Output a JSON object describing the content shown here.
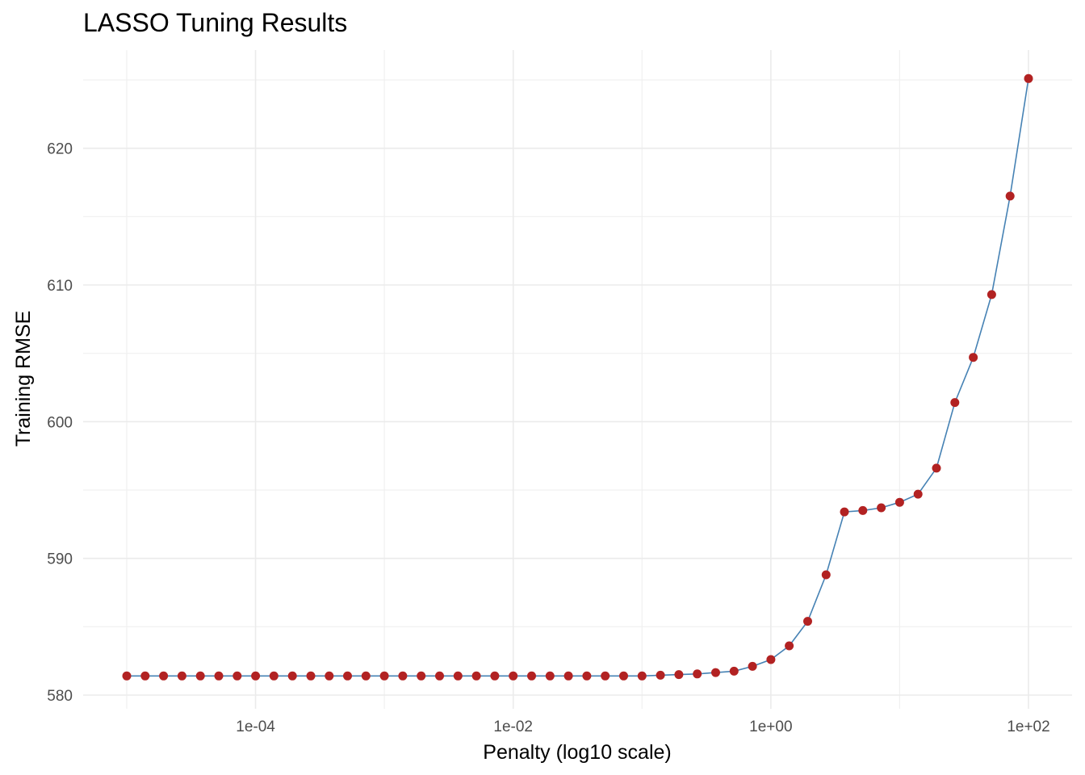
{
  "chart_data": {
    "type": "line",
    "title": "LASSO Tuning Results",
    "xlabel": "Penalty (log10 scale)",
    "ylabel": "Training RMSE",
    "x_scale": "log10",
    "xlim": [
      1e-05,
      100
    ],
    "ylim": [
      580,
      625
    ],
    "x_ticks": [
      {
        "value": 0.0001,
        "label": "1e-04"
      },
      {
        "value": 0.01,
        "label": "1e-02"
      },
      {
        "value": 1,
        "label": "1e+00"
      },
      {
        "value": 100,
        "label": "1e+02"
      }
    ],
    "y_ticks": [
      {
        "value": 580,
        "label": "580"
      },
      {
        "value": 590,
        "label": "590"
      },
      {
        "value": 600,
        "label": "600"
      },
      {
        "value": 610,
        "label": "610"
      },
      {
        "value": 620,
        "label": "620"
      }
    ],
    "grid": true,
    "line_color": "#4682b4",
    "point_color": "#b22222",
    "series": [
      {
        "x": [
          1e-05,
          1.389e-05,
          1.931e-05,
          2.683e-05,
          3.728e-05,
          5.179e-05,
          7.197e-05,
          0.0001,
          0.0001389,
          0.0001931,
          0.0002683,
          0.0003728,
          0.0005179,
          0.0007197,
          0.001,
          0.001389,
          0.001931,
          0.002683,
          0.003728,
          0.005179,
          0.007197,
          0.01,
          0.01389,
          0.01931,
          0.02683,
          0.03728,
          0.05179,
          0.07197,
          0.1,
          0.1389,
          0.1931,
          0.2683,
          0.3728,
          0.5179,
          0.7197,
          1,
          1.389,
          1.931,
          2.683,
          3.728,
          5.179,
          7.197,
          10,
          13.89,
          19.31,
          26.83,
          37.28,
          51.79,
          71.97,
          100
        ],
        "y": [
          581.4,
          581.4,
          581.4,
          581.4,
          581.4,
          581.4,
          581.4,
          581.4,
          581.4,
          581.4,
          581.4,
          581.4,
          581.4,
          581.4,
          581.4,
          581.4,
          581.4,
          581.4,
          581.4,
          581.4,
          581.4,
          581.4,
          581.4,
          581.4,
          581.4,
          581.4,
          581.4,
          581.4,
          581.4,
          581.45,
          581.5,
          581.55,
          581.65,
          581.75,
          582.1,
          582.6,
          583.6,
          585.4,
          588.8,
          593.4,
          593.5,
          593.7,
          594.1,
          594.7,
          596.6,
          601.4,
          604.7,
          609.3,
          616.5,
          625.1
        ]
      }
    ]
  }
}
